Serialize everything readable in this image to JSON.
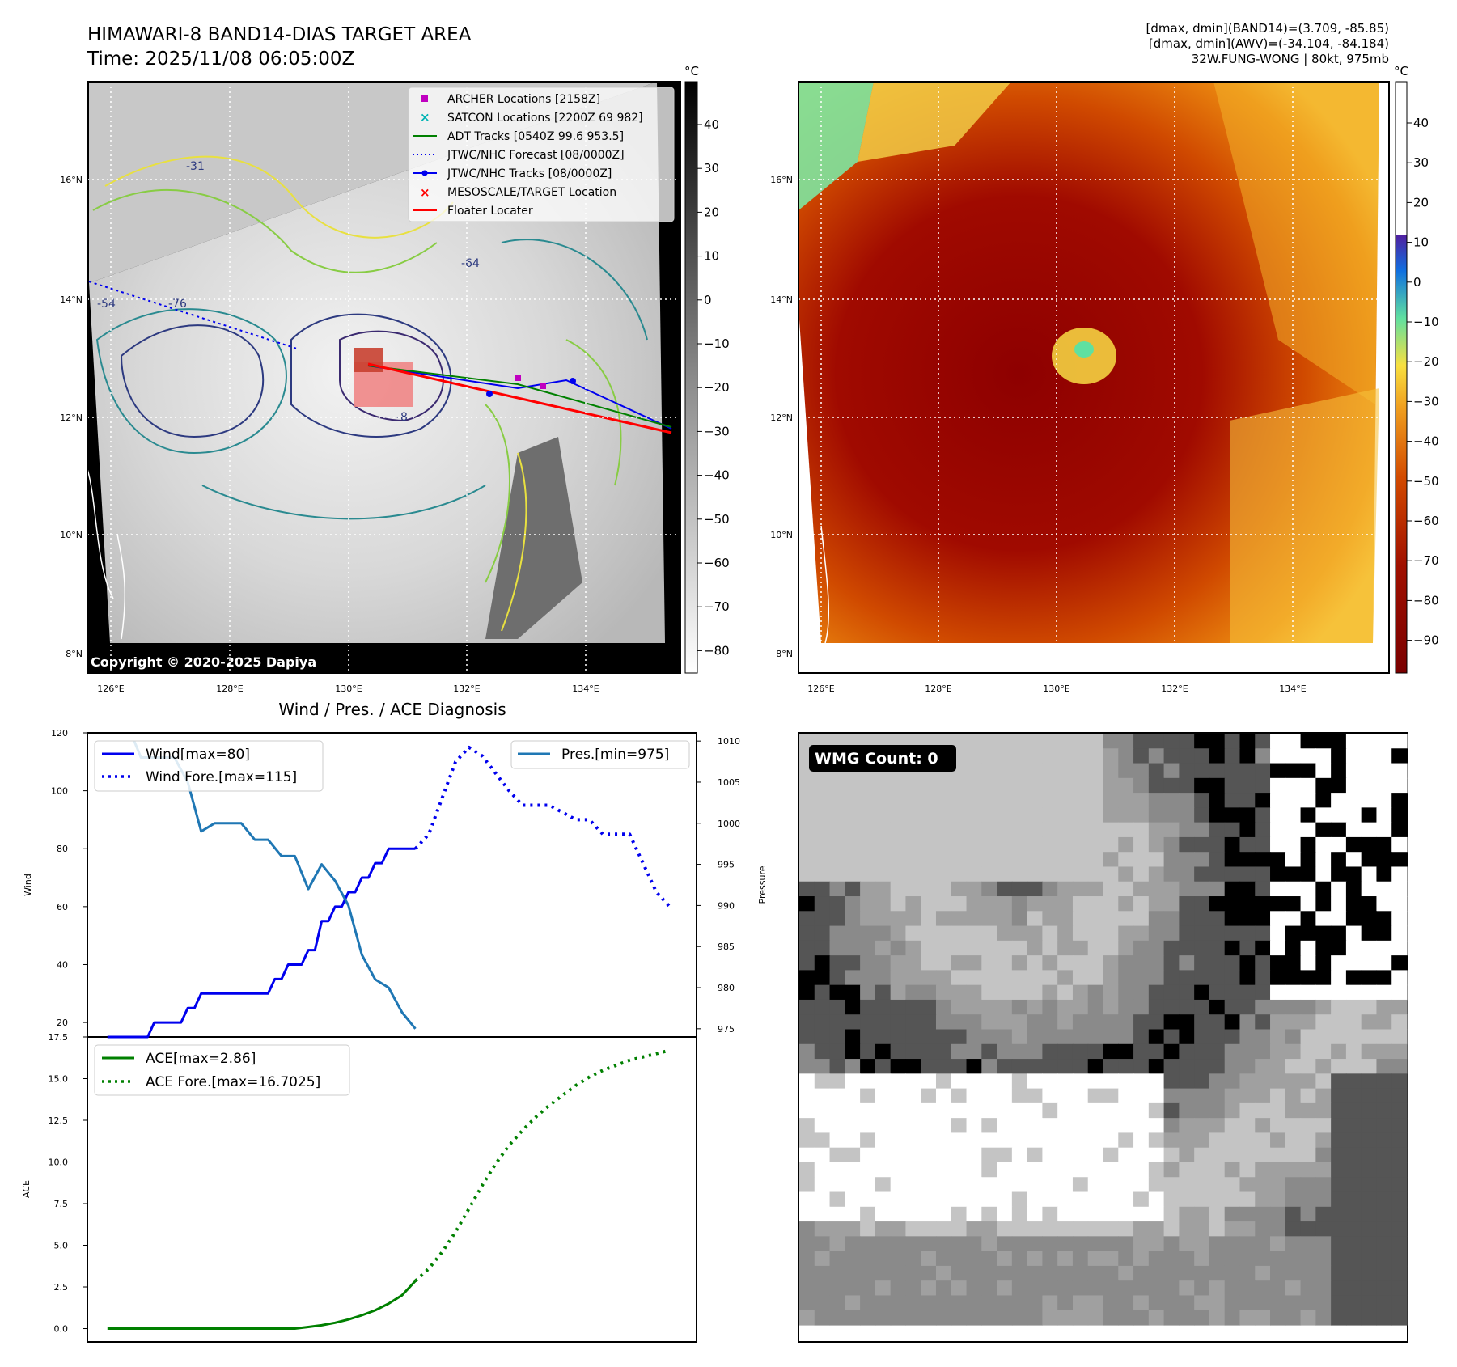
{
  "header": {
    "title_line1": "HIMAWARI-8 BAND14-DIAS TARGET AREA",
    "title_line2": "Time: 2025/11/08 06:05:00Z",
    "info_line1": "[dmax, dmin](BAND14)=(3.709, -85.85)",
    "info_line2": "[dmax, dmin](AWV)=(-34.104, -84.184)",
    "info_line3": "32W.FUNG-WONG | 80kt, 975mb"
  },
  "map": {
    "unit": "°C",
    "lat_labels": [
      "16°N",
      "14°N",
      "12°N",
      "10°N",
      "8°N"
    ],
    "lon_labels": [
      "126°E",
      "128°E",
      "130°E",
      "132°E",
      "134°E"
    ],
    "copyright": "Copyright © 2020-2025 Dapiya",
    "contour_labels": [
      "-76",
      "-64",
      "-54",
      "-31",
      "-8"
    ],
    "colorbar_gray_ticks": [
      "40",
      "30",
      "20",
      "10",
      "0",
      "−10",
      "−20",
      "−30",
      "−40",
      "−50",
      "−60",
      "−70",
      "−80"
    ],
    "colorbar_color_ticks": [
      "40",
      "30",
      "20",
      "10",
      "0",
      "−10",
      "−20",
      "−30",
      "−40",
      "−50",
      "−60",
      "−70",
      "−80",
      "−90"
    ],
    "legend": [
      {
        "label": "ARCHER Locations [2158Z]",
        "color": "#c000c0",
        "marker": "square"
      },
      {
        "label": "SATCON Locations [2200Z 69 982]",
        "color": "#00b4b4",
        "marker": "x"
      },
      {
        "label": "ADT Tracks [0540Z 99.6 953.5]",
        "color": "#008000",
        "marker": "line"
      },
      {
        "label": "JTWC/NHC Forecast [08/0000Z]",
        "color": "#0000ee",
        "marker": "dotted"
      },
      {
        "label": "JTWC/NHC Tracks [08/0000Z]",
        "color": "#0000ee",
        "marker": "line-dot"
      },
      {
        "label": "MESOSCALE/TARGET Location",
        "color": "#ff0000",
        "marker": "x"
      },
      {
        "label": "Floater Locater",
        "color": "#ff0000",
        "marker": "line"
      }
    ]
  },
  "diag": {
    "title": "Wind / Pres. / ACE Diagnosis",
    "wind_ylabel": "Wind",
    "pres_ylabel": "Pressure",
    "ace_ylabel": "ACE",
    "legend_wind": "Wind[max=80]",
    "legend_wind_fore": "Wind Fore.[max=115]",
    "legend_pres": "Pres.[min=975]",
    "legend_ace": "ACE[max=2.86]",
    "legend_ace_fore": "ACE Fore.[max=16.7025]",
    "wind_ticks": [
      "120",
      "100",
      "80",
      "60",
      "40",
      "20"
    ],
    "pres_ticks": [
      "1010",
      "1005",
      "1000",
      "995",
      "990",
      "985",
      "980",
      "975"
    ],
    "ace_ticks": [
      "17.5",
      "15.0",
      "12.5",
      "10.0",
      "7.5",
      "5.0",
      "2.5",
      "0.0"
    ]
  },
  "wmg": {
    "label": "WMG Count: 0"
  },
  "chart_data": [
    {
      "type": "line",
      "title": "Wind / Pres. / ACE Diagnosis",
      "ylabel": "Wind",
      "ylim": [
        15,
        120
      ],
      "series": [
        {
          "name": "Wind[max=80]",
          "x": [
            0,
            1,
            2,
            3,
            4,
            5,
            6,
            7,
            8,
            9,
            10,
            11,
            12,
            13,
            14,
            15,
            16,
            17,
            18,
            19,
            20,
            21,
            22,
            23,
            24,
            25,
            26,
            27,
            28,
            29,
            30,
            31,
            32,
            33,
            34,
            35,
            36,
            37,
            38,
            39,
            40,
            41,
            42,
            43,
            44,
            45,
            46
          ],
          "values": [
            15,
            15,
            15,
            15,
            15,
            15,
            15,
            20,
            20,
            20,
            20,
            20,
            25,
            25,
            30,
            30,
            30,
            30,
            30,
            30,
            30,
            30,
            30,
            30,
            30,
            35,
            35,
            40,
            40,
            40,
            45,
            45,
            55,
            55,
            60,
            60,
            65,
            65,
            70,
            70,
            75,
            75,
            80,
            80,
            80,
            80,
            80
          ]
        },
        {
          "name": "Wind Fore.[max=115]",
          "x": [
            46,
            48,
            52,
            54,
            56,
            60,
            62,
            66,
            70,
            72,
            74,
            78,
            82,
            84
          ],
          "values": [
            80,
            85,
            110,
            115,
            112,
            100,
            95,
            95,
            90,
            90,
            85,
            85,
            65,
            60
          ]
        }
      ]
    },
    {
      "type": "line",
      "ylabel": "Pressure",
      "ylim": [
        974,
        1011
      ],
      "series": [
        {
          "name": "Pres.[min=975]",
          "x": [
            4,
            5,
            6,
            8,
            10,
            12,
            14,
            16,
            18,
            20,
            22,
            24,
            26,
            28,
            30,
            32,
            34,
            36,
            38,
            40,
            42,
            44,
            46
          ],
          "values": [
            1010,
            1008,
            1008,
            1008,
            1008,
            1005,
            999,
            1000,
            1000,
            1000,
            998,
            998,
            996,
            996,
            992,
            995,
            993,
            990,
            984,
            981,
            980,
            977,
            975
          ]
        }
      ]
    },
    {
      "type": "line",
      "ylabel": "ACE",
      "ylim": [
        -0.8,
        17.5
      ],
      "series": [
        {
          "name": "ACE[max=2.86]",
          "x": [
            0,
            4,
            8,
            12,
            16,
            20,
            24,
            28,
            30,
            32,
            34,
            36,
            38,
            40,
            42,
            44,
            46
          ],
          "values": [
            0,
            0,
            0,
            0,
            0,
            0,
            0,
            0,
            0.1,
            0.2,
            0.35,
            0.55,
            0.8,
            1.1,
            1.5,
            2.0,
            2.86
          ]
        },
        {
          "name": "ACE Fore.[max=16.7025]",
          "x": [
            46,
            48,
            50,
            52,
            54,
            56,
            58,
            60,
            62,
            64,
            66,
            68,
            70,
            72,
            74,
            76,
            78,
            80,
            82,
            84
          ],
          "values": [
            2.86,
            3.6,
            4.6,
            5.8,
            7.2,
            8.6,
            9.9,
            11.0,
            11.9,
            12.7,
            13.4,
            14.0,
            14.6,
            15.1,
            15.5,
            15.8,
            16.1,
            16.3,
            16.5,
            16.7025
          ]
        }
      ]
    }
  ]
}
